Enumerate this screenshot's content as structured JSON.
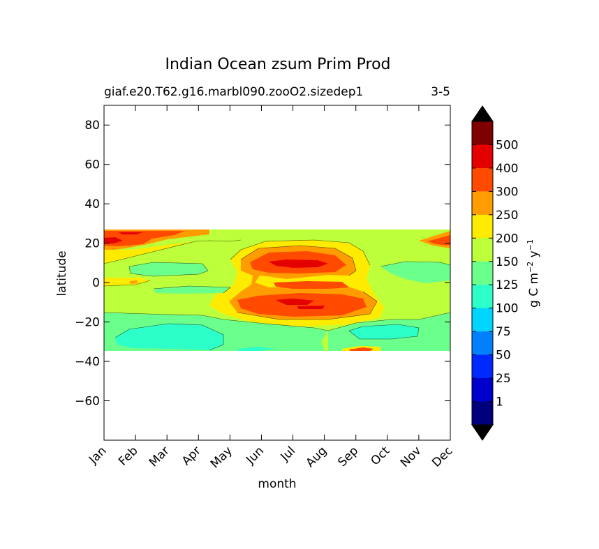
{
  "chart_data": {
    "type": "heatmap",
    "title": "Indian Ocean zsum Prim Prod",
    "subtitle_left": "giaf.e20.T62.g16.marbl090.zooO2.sizedep1",
    "subtitle_right": "3-5",
    "xlabel": "month",
    "ylabel": "latitude",
    "x_categories": [
      "Jan",
      "Feb",
      "Mar",
      "Apr",
      "May",
      "Jun",
      "Jul",
      "Aug",
      "Sep",
      "Oct",
      "Nov",
      "Dec"
    ],
    "ylim": [
      -80,
      90
    ],
    "yticks": [
      80,
      60,
      40,
      20,
      0,
      -20,
      -40,
      -60
    ],
    "yticks_labels": [
      "80",
      "60",
      "40",
      "20",
      "0",
      "−20",
      "−40",
      "−60"
    ],
    "data_lat_range": [
      -34,
      27
    ],
    "colorbar": {
      "label": "g C m⁻² y⁻¹",
      "tick_labels": [
        "500",
        "400",
        "300",
        "250",
        "200",
        "150",
        "125",
        "100",
        "75",
        "50",
        "25",
        "1"
      ],
      "band_colors": [
        "#7f0000",
        "#e50000",
        "#ff4a00",
        "#ff9c00",
        "#ffeb00",
        "#bcff3a",
        "#6bff8b",
        "#2dffc9",
        "#00d5ff",
        "#0080ff",
        "#0029ff",
        "#0000cd",
        "#00007f"
      ],
      "extend": "both"
    },
    "grid": false,
    "colors": {
      "band_150_200": "#bcff3a",
      "band_200_250": "#ffeb00",
      "band_250_300": "#ff9c00",
      "band_300_400": "#ff4a00",
      "band_400_500": "#e50000",
      "band_125_150": "#6bff8b",
      "band_100_125": "#2dffc9"
    }
  }
}
